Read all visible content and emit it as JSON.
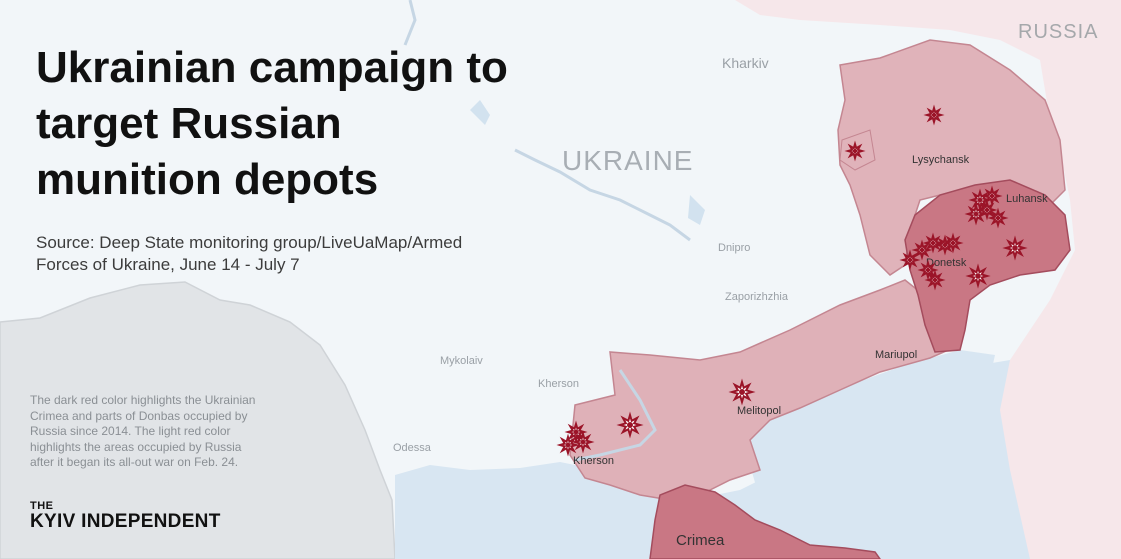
{
  "title_lines": [
    "Ukrainian campaign to",
    "target Russian",
    "munition depots"
  ],
  "source_lines": [
    "Source: Deep State monitoring group/LiveUaMap/Armed",
    "Forces of Ukraine, June 14 - July 7"
  ],
  "legend_note_lines": [
    "The dark red color highlights the Ukrainian",
    "Crimea and parts of Donbas occupied by",
    "Russia since 2014. The light red color",
    "highlights the areas occupied by Russia",
    "after it began its all-out war on Feb. 24."
  ],
  "logo": {
    "top": "THE",
    "name": "KYIV INDEPENDENT"
  },
  "labels": {
    "country_russia": "RUSSIA",
    "country_ukraine": "UKRAINE",
    "kharkiv": "Kharkiv",
    "lysychansk": "Lysychansk",
    "luhansk": "Luhansk",
    "donetsk": "Donetsk",
    "dnipro": "Dnipro",
    "zaporizhzhia": "Zaporizhzhia",
    "mariupol": "Mariupol",
    "mykolaiv": "Mykolaiv",
    "kherson_region": "Kherson",
    "kherson_city": "Kherson",
    "melitopol": "Melitopol",
    "odessa": "Odessa",
    "crimea": "Crimea"
  },
  "colors": {
    "sea": "#dbe8f3",
    "land": "#f4f7fa",
    "neighbor": "#e2e4e7",
    "russia": "#f5e6e8",
    "occupied_2022": "#dfb2b9",
    "occupied_2014": "#c97784",
    "border": "#b86676",
    "marker": "#9b1428"
  },
  "depot_strike_icon": "explosion-star-icon"
}
